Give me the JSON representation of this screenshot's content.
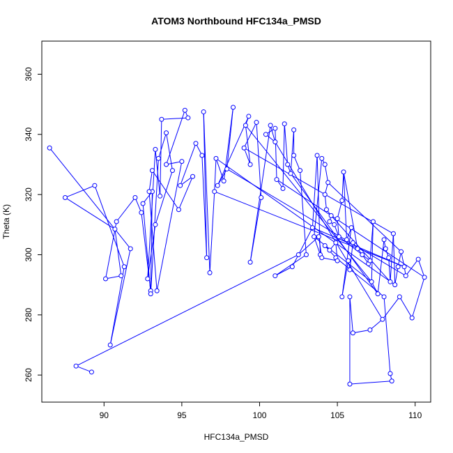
{
  "chart_data": {
    "type": "scatter",
    "title": "ATOM3 Northbound HFC134a_PMSD",
    "xlabel": "HFC134a_PMSD",
    "ylabel": "Theta (K)",
    "xlim": [
      86,
      111
    ],
    "ylim": [
      251,
      371
    ],
    "xticks": [
      90,
      95,
      100,
      105,
      110
    ],
    "yticks": [
      260,
      280,
      300,
      320,
      340,
      360
    ],
    "grid": false,
    "point_style": "open-circle",
    "connected": true,
    "series_color": "#0000ff",
    "points": [
      [
        86.5,
        335.5
      ],
      [
        90.7,
        308.5
      ],
      [
        91.7,
        302
      ],
      [
        90.4,
        270
      ],
      [
        91.3,
        296
      ],
      [
        87.5,
        319
      ],
      [
        89.4,
        323
      ],
      [
        91.1,
        293
      ],
      [
        90.1,
        292
      ],
      [
        90.8,
        311
      ],
      [
        92.0,
        319
      ],
      [
        92.4,
        314
      ],
      [
        93.0,
        288
      ],
      [
        93.1,
        321
      ],
      [
        92.5,
        317
      ],
      [
        93.0,
        287
      ],
      [
        93.5,
        332
      ],
      [
        94.0,
        340.5
      ],
      [
        94.4,
        328
      ],
      [
        93.3,
        310
      ],
      [
        92.8,
        292
      ],
      [
        93.3,
        335
      ],
      [
        93.6,
        319.5
      ],
      [
        93.7,
        345
      ],
      [
        95.4,
        345.5
      ],
      [
        95.2,
        348
      ],
      [
        94.0,
        330
      ],
      [
        95.0,
        331
      ],
      [
        93.4,
        288
      ],
      [
        92.9,
        321
      ],
      [
        93.1,
        328
      ],
      [
        94.8,
        315
      ],
      [
        95.7,
        326
      ],
      [
        94.9,
        323
      ],
      [
        95.9,
        337
      ],
      [
        96.3,
        333
      ],
      [
        96.6,
        299
      ],
      [
        96.4,
        347.5
      ],
      [
        96.8,
        294
      ],
      [
        97.1,
        321
      ],
      [
        97.2,
        332
      ],
      [
        97.7,
        324.5
      ],
      [
        98.3,
        349
      ],
      [
        97.9,
        328.5
      ],
      [
        97.3,
        323
      ],
      [
        99.3,
        346
      ],
      [
        99.1,
        343
      ],
      [
        99.4,
        330
      ],
      [
        99.0,
        335.5
      ],
      [
        99.8,
        344
      ],
      [
        100.1,
        319
      ],
      [
        99.4,
        297.5
      ],
      [
        100.7,
        343
      ],
      [
        101.0,
        337.5
      ],
      [
        100.4,
        340
      ],
      [
        101.0,
        342
      ],
      [
        101.1,
        325
      ],
      [
        101.5,
        322
      ],
      [
        101.6,
        343.5
      ],
      [
        101.8,
        330
      ],
      [
        102.0,
        327
      ],
      [
        102.2,
        341.5
      ],
      [
        102.2,
        333
      ],
      [
        102.6,
        328
      ],
      [
        103.0,
        300
      ],
      [
        101.0,
        293
      ],
      [
        102.1,
        296
      ],
      [
        103.4,
        309
      ],
      [
        103.7,
        333
      ],
      [
        103.9,
        300
      ],
      [
        103.5,
        306
      ],
      [
        104.0,
        332
      ],
      [
        104.2,
        330
      ],
      [
        104.4,
        324
      ],
      [
        104.2,
        320
      ],
      [
        104.3,
        315
      ],
      [
        104.6,
        313
      ],
      [
        104.5,
        311
      ],
      [
        104.8,
        310
      ],
      [
        105.1,
        306
      ],
      [
        105.0,
        312
      ],
      [
        105.3,
        318
      ],
      [
        105.4,
        327.5
      ],
      [
        105.6,
        305
      ],
      [
        105.9,
        309
      ],
      [
        105.3,
        286
      ],
      [
        105.7,
        298
      ],
      [
        105.8,
        295
      ],
      [
        106.0,
        304
      ],
      [
        106.3,
        302
      ],
      [
        106.6,
        300
      ],
      [
        107.0,
        297
      ],
      [
        107.1,
        298
      ],
      [
        107.3,
        311
      ],
      [
        107.2,
        291
      ],
      [
        107.6,
        287
      ],
      [
        108.0,
        305
      ],
      [
        108.1,
        302
      ],
      [
        108.3,
        299
      ],
      [
        108.4,
        291
      ],
      [
        108.6,
        307
      ],
      [
        108.7,
        290
      ],
      [
        108.9,
        296
      ],
      [
        109.1,
        301
      ],
      [
        109.3,
        296
      ],
      [
        109.4,
        293
      ],
      [
        110.2,
        298.5
      ],
      [
        110.6,
        292.5
      ],
      [
        109.8,
        279
      ],
      [
        109.0,
        286
      ],
      [
        107.9,
        278.5
      ],
      [
        107.1,
        275
      ],
      [
        106.0,
        274
      ],
      [
        105.8,
        286
      ],
      [
        105.8,
        257
      ],
      [
        108.5,
        258
      ],
      [
        108.4,
        260.5
      ],
      [
        108.0,
        286
      ],
      [
        104.9,
        299
      ],
      [
        104.2,
        303
      ],
      [
        104.5,
        301.5
      ],
      [
        104.9,
        304
      ],
      [
        105.0,
        298
      ],
      [
        104.0,
        299
      ],
      [
        103.8,
        306
      ],
      [
        102.5,
        300
      ],
      [
        88.2,
        263
      ],
      [
        89.2,
        261
      ]
    ],
    "segments": [
      [
        0,
        1
      ],
      [
        1,
        2
      ],
      [
        2,
        3
      ],
      [
        3,
        4
      ],
      [
        4,
        6
      ],
      [
        6,
        5
      ],
      [
        5,
        1
      ],
      [
        1,
        7
      ],
      [
        7,
        8
      ],
      [
        8,
        9
      ],
      [
        9,
        10
      ],
      [
        10,
        11
      ],
      [
        11,
        12
      ],
      [
        12,
        13
      ],
      [
        13,
        14
      ],
      [
        14,
        15
      ],
      [
        15,
        16
      ],
      [
        16,
        17
      ],
      [
        17,
        18
      ],
      [
        18,
        19
      ],
      [
        19,
        20
      ],
      [
        20,
        21
      ],
      [
        21,
        22
      ],
      [
        22,
        23
      ],
      [
        23,
        24
      ],
      [
        24,
        25
      ],
      [
        25,
        26
      ],
      [
        26,
        27
      ],
      [
        27,
        28
      ],
      [
        28,
        29
      ],
      [
        29,
        30
      ],
      [
        30,
        31
      ],
      [
        31,
        32
      ],
      [
        32,
        33
      ],
      [
        33,
        34
      ],
      [
        34,
        35
      ],
      [
        35,
        36
      ],
      [
        36,
        37
      ],
      [
        37,
        38
      ],
      [
        38,
        39
      ],
      [
        39,
        40
      ],
      [
        40,
        41
      ],
      [
        41,
        42
      ],
      [
        42,
        43
      ],
      [
        43,
        44
      ],
      [
        44,
        45
      ],
      [
        45,
        46
      ],
      [
        46,
        47
      ],
      [
        47,
        48
      ],
      [
        48,
        49
      ],
      [
        49,
        50
      ],
      [
        50,
        51
      ],
      [
        51,
        52
      ],
      [
        52,
        53
      ],
      [
        53,
        54
      ],
      [
        54,
        55
      ],
      [
        55,
        56
      ],
      [
        56,
        57
      ],
      [
        57,
        58
      ],
      [
        58,
        59
      ],
      [
        59,
        60
      ],
      [
        60,
        61
      ],
      [
        61,
        62
      ],
      [
        62,
        63
      ],
      [
        63,
        64
      ],
      [
        64,
        65
      ],
      [
        65,
        66
      ],
      [
        66,
        67
      ],
      [
        67,
        68
      ],
      [
        68,
        69
      ],
      [
        69,
        70
      ],
      [
        70,
        71
      ],
      [
        71,
        72
      ],
      [
        72,
        73
      ],
      [
        73,
        74
      ],
      [
        74,
        75
      ],
      [
        75,
        76
      ],
      [
        76,
        77
      ],
      [
        77,
        78
      ],
      [
        78,
        79
      ],
      [
        79,
        80
      ],
      [
        80,
        81
      ],
      [
        81,
        82
      ],
      [
        82,
        83
      ],
      [
        83,
        84
      ],
      [
        84,
        85
      ],
      [
        85,
        86
      ],
      [
        86,
        87
      ],
      [
        87,
        88
      ],
      [
        88,
        89
      ],
      [
        89,
        90
      ],
      [
        90,
        91
      ],
      [
        91,
        92
      ],
      [
        92,
        93
      ],
      [
        93,
        94
      ],
      [
        94,
        95
      ],
      [
        95,
        96
      ],
      [
        96,
        97
      ],
      [
        97,
        98
      ],
      [
        98,
        99
      ],
      [
        99,
        100
      ],
      [
        100,
        101
      ],
      [
        101,
        102
      ],
      [
        102,
        103
      ],
      [
        103,
        104
      ],
      [
        104,
        105
      ],
      [
        105,
        106
      ],
      [
        106,
        107
      ],
      [
        107,
        108
      ],
      [
        108,
        109
      ],
      [
        109,
        110
      ],
      [
        110,
        111
      ],
      [
        111,
        112
      ],
      [
        112,
        113
      ],
      [
        113,
        114
      ],
      [
        114,
        115
      ],
      [
        115,
        116
      ],
      [
        116,
        117
      ],
      [
        117,
        118
      ],
      [
        118,
        119
      ],
      [
        119,
        120
      ],
      [
        120,
        121
      ],
      [
        121,
        122
      ],
      [
        122,
        123
      ],
      [
        123,
        124
      ],
      [
        124,
        125
      ],
      [
        125,
        126
      ],
      [
        126,
        127
      ],
      [
        127,
        128
      ],
      [
        128,
        129
      ],
      [
        129,
        130
      ],
      [
        130,
        131
      ],
      [
        131,
        3
      ],
      [
        3,
        132
      ],
      [
        132,
        8
      ],
      [
        48,
        100
      ],
      [
        43,
        105
      ],
      [
        40,
        101
      ],
      [
        39,
        104
      ],
      [
        46,
        94
      ],
      [
        56,
        107
      ],
      [
        53,
        110
      ],
      [
        60,
        95
      ],
      [
        67,
        104
      ],
      [
        70,
        94
      ],
      [
        73,
        103
      ],
      [
        76,
        99
      ],
      [
        79,
        92
      ],
      [
        82,
        89
      ]
    ]
  }
}
